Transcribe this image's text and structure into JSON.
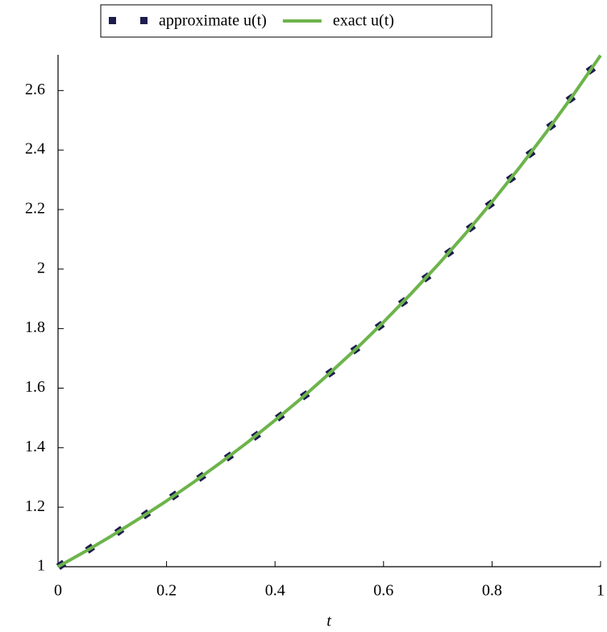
{
  "chart_data": {
    "type": "line",
    "x_label": "t",
    "xlim": [
      0,
      1
    ],
    "xticks": [
      0,
      0.2,
      0.4,
      0.6,
      0.8,
      1
    ],
    "ylim": [
      1,
      2.72
    ],
    "yticks": [
      1,
      1.2,
      1.4,
      1.6,
      1.8,
      2,
      2.2,
      2.4,
      2.6
    ],
    "grid": false,
    "legend": "top",
    "series": [
      {
        "name": "approximate u(t)",
        "color": "#1c1c4f",
        "style": "markers",
        "x": [
          0.006,
          0.059,
          0.113,
          0.162,
          0.214,
          0.264,
          0.315,
          0.365,
          0.409,
          0.455,
          0.502,
          0.548,
          0.593,
          0.636,
          0.679,
          0.721,
          0.761,
          0.796,
          0.835,
          0.871,
          0.909,
          0.945,
          0.982
        ],
        "values": [
          1.006,
          1.061,
          1.12,
          1.176,
          1.239,
          1.302,
          1.37,
          1.44,
          1.505,
          1.576,
          1.652,
          1.73,
          1.809,
          1.889,
          1.972,
          2.056,
          2.14,
          2.217,
          2.305,
          2.389,
          2.482,
          2.573,
          2.67
        ]
      },
      {
        "name": "exact u(t)",
        "color": "#6db44b",
        "style": "line",
        "x": [
          0,
          0.05,
          0.1,
          0.15,
          0.2,
          0.25,
          0.3,
          0.35,
          0.4,
          0.45,
          0.5,
          0.55,
          0.6,
          0.65,
          0.7,
          0.75,
          0.8,
          0.85,
          0.9,
          0.95,
          1
        ],
        "values": [
          1,
          1.051,
          1.105,
          1.162,
          1.221,
          1.284,
          1.35,
          1.419,
          1.492,
          1.568,
          1.649,
          1.733,
          1.822,
          1.916,
          2.014,
          2.117,
          2.226,
          2.34,
          2.46,
          2.586,
          2.718
        ]
      }
    ]
  }
}
